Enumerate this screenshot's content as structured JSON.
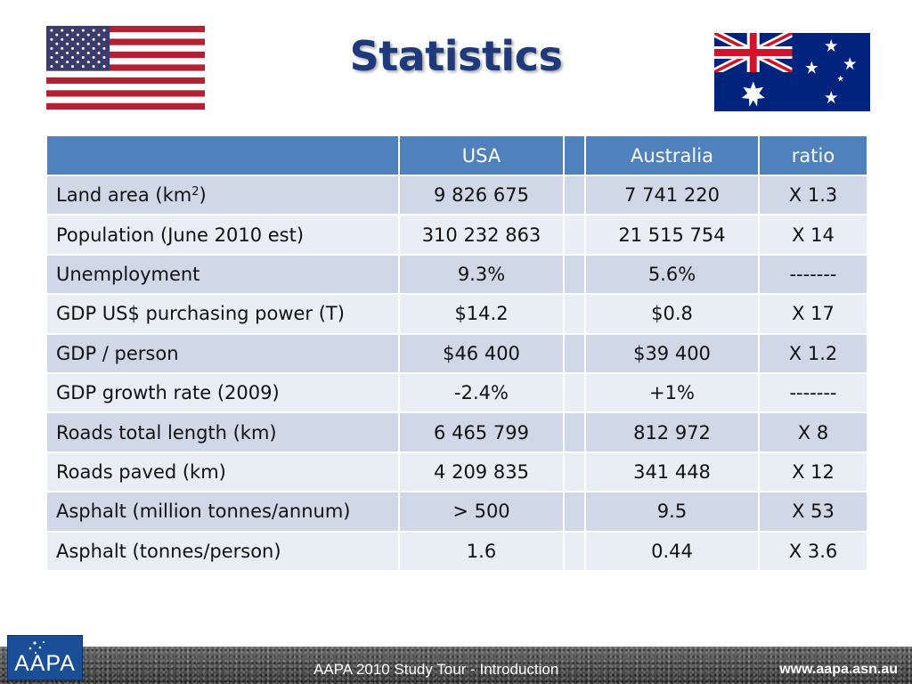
{
  "slide": {
    "title": "Statistics",
    "flag_left": "usa-flag",
    "flag_right": "australia-flag"
  },
  "table": {
    "headers": [
      "",
      "USA",
      "",
      "Australia",
      "ratio"
    ],
    "rows": [
      {
        "label": "Land area (km",
        "label_sup": "2",
        "label_after": ")",
        "usa": "9 826 675",
        "australia": "7 741 220",
        "ratio": "X 1.3"
      },
      {
        "label": "Population (June 2010 est)",
        "usa": "310 232 863",
        "australia": "21 515 754",
        "ratio": "X 14"
      },
      {
        "label": "Unemployment",
        "usa": "9.3%",
        "australia": "5.6%",
        "ratio": "-------"
      },
      {
        "label": "GDP US$ purchasing power (T)",
        "usa": "$14.2",
        "australia": "$0.8",
        "ratio": "X 17"
      },
      {
        "label": "GDP / person",
        "usa": "$46 400",
        "australia": "$39 400",
        "ratio": "X 1.2"
      },
      {
        "label": "GDP growth rate (2009)",
        "usa": "-2.4%",
        "australia": "+1%",
        "ratio": "-------"
      },
      {
        "label": "Roads total length (km)",
        "usa": "6 465 799",
        "australia": "812 972",
        "ratio": "X 8"
      },
      {
        "label": "Roads paved (km)",
        "usa": "4 209 835",
        "australia": "341 448",
        "ratio": "X 12"
      },
      {
        "label": "Asphalt (million tonnes/annum)",
        "usa": "> 500",
        "australia": "9.5",
        "ratio": "X 53"
      },
      {
        "label": "Asphalt (tonnes/person)",
        "usa": "1.6",
        "australia": "0.44",
        "ratio": "X 3.6"
      }
    ]
  },
  "footer": {
    "logo_text": "AAPA",
    "caption": "AAPA 2010 Study Tour - Introduction",
    "url": "www.aapa.asn.au"
  },
  "colors": {
    "header_bg": "#4f81bd",
    "row_odd": "#d0d8e8",
    "row_even": "#e9edf4",
    "title": "#1f3a7a"
  }
}
